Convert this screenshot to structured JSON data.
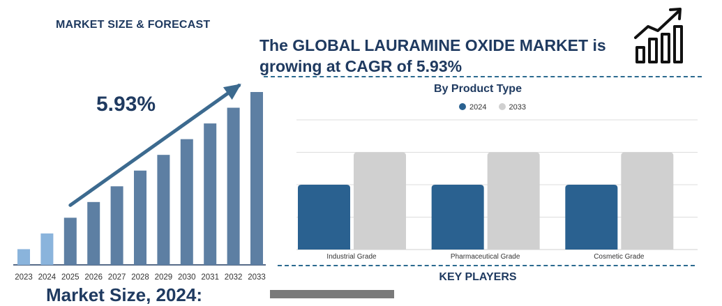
{
  "header": {
    "section_title": "MARKET SIZE & FORECAST",
    "headline_line1": "The GLOBAL LAURAMINE OXIDE MARKET is",
    "headline_line2": "growing at CAGR of 5.93%"
  },
  "footer": {
    "key_players": "KEY PLAYERS",
    "market_size": "Market Size, 2024:"
  },
  "icons": [
    "trend-up-chart-icon"
  ],
  "colors": {
    "navy_text": "#1f3a60",
    "bar_light": "#8ab4dc",
    "bar_steel": "#5d7fa3",
    "arrow": "#3c6a8f",
    "series_2024": "#2a6190",
    "series_2033": "#d0d0d0",
    "divider": "#2b6a8f"
  },
  "chart_data": [
    {
      "type": "bar",
      "annotation": "5.93%",
      "categories": [
        "2023",
        "2024",
        "2025",
        "2026",
        "2027",
        "2028",
        "2029",
        "2030",
        "2031",
        "2032",
        "2033"
      ],
      "values": [
        1.0,
        2.0,
        3.0,
        4.0,
        5.0,
        6.0,
        7.0,
        8.0,
        9.0,
        10.0,
        11.0
      ],
      "highlight_categories": [
        "2023",
        "2024"
      ],
      "trend_arrow": true,
      "title": "",
      "xlabel": "",
      "ylabel": ""
    },
    {
      "type": "bar",
      "title": "By Product Type",
      "categories": [
        "Industrial Grade",
        "Pharmaceutical Grade",
        "Cosmetic Grade"
      ],
      "series": [
        {
          "name": "2024",
          "values": [
            2.0,
            2.0,
            2.0
          ]
        },
        {
          "name": "2033",
          "values": [
            3.0,
            3.0,
            3.0
          ]
        }
      ],
      "ylim": [
        0,
        4
      ],
      "grid": true,
      "legend": "top-center",
      "xlabel": "",
      "ylabel": ""
    }
  ]
}
